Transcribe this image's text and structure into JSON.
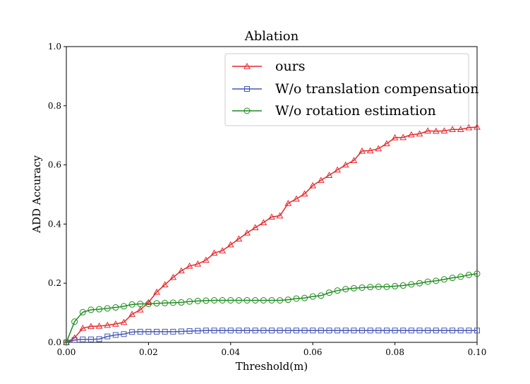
{
  "chart_data": {
    "type": "line",
    "title": "Ablation",
    "xlabel": "Threshold(m)",
    "ylabel": "ADD  Accuracy",
    "xlim": [
      0.0,
      0.1
    ],
    "ylim": [
      0.0,
      1.0
    ],
    "xticks": [
      "0.00",
      "0.02",
      "0.04",
      "0.06",
      "0.08",
      "0.10"
    ],
    "yticks": [
      "0.0",
      "0.2",
      "0.4",
      "0.6",
      "0.8",
      "1.0"
    ],
    "grid": false,
    "legend_position": "top-right",
    "x": [
      0.0,
      0.002,
      0.004,
      0.006,
      0.008,
      0.01,
      0.012,
      0.014,
      0.016,
      0.018,
      0.02,
      0.022,
      0.024,
      0.026,
      0.028,
      0.03,
      0.032,
      0.034,
      0.036,
      0.038,
      0.04,
      0.042,
      0.044,
      0.046,
      0.048,
      0.05,
      0.052,
      0.054,
      0.056,
      0.058,
      0.06,
      0.062,
      0.064,
      0.066,
      0.068,
      0.07,
      0.072,
      0.074,
      0.076,
      0.078,
      0.08,
      0.082,
      0.084,
      0.086,
      0.088,
      0.09,
      0.092,
      0.094,
      0.096,
      0.098,
      0.1
    ],
    "series": [
      {
        "name": "ours",
        "color": "#e8262a",
        "marker": "triangle",
        "values": [
          0.0,
          0.015,
          0.048,
          0.054,
          0.055,
          0.058,
          0.062,
          0.068,
          0.095,
          0.11,
          0.135,
          0.17,
          0.195,
          0.22,
          0.242,
          0.258,
          0.265,
          0.278,
          0.302,
          0.31,
          0.33,
          0.35,
          0.37,
          0.388,
          0.405,
          0.424,
          0.428,
          0.47,
          0.485,
          0.502,
          0.53,
          0.548,
          0.565,
          0.583,
          0.6,
          0.615,
          0.647,
          0.648,
          0.655,
          0.672,
          0.692,
          0.693,
          0.702,
          0.705,
          0.715,
          0.714,
          0.715,
          0.72,
          0.72,
          0.726,
          0.728
        ]
      },
      {
        "name": "W/o translation compensation",
        "color": "#4457b5",
        "marker": "square",
        "values": [
          0.0,
          0.008,
          0.01,
          0.01,
          0.011,
          0.02,
          0.025,
          0.028,
          0.035,
          0.036,
          0.036,
          0.036,
          0.036,
          0.036,
          0.037,
          0.038,
          0.039,
          0.04,
          0.04,
          0.04,
          0.04,
          0.04,
          0.04,
          0.04,
          0.04,
          0.04,
          0.04,
          0.04,
          0.04,
          0.04,
          0.04,
          0.04,
          0.04,
          0.04,
          0.04,
          0.04,
          0.04,
          0.04,
          0.04,
          0.04,
          0.04,
          0.04,
          0.04,
          0.04,
          0.04,
          0.04,
          0.04,
          0.04,
          0.04,
          0.04,
          0.04
        ]
      },
      {
        "name": "W/o rotation estimation",
        "color": "#1e8c1e",
        "marker": "circle",
        "values": [
          0.0,
          0.07,
          0.102,
          0.11,
          0.112,
          0.115,
          0.118,
          0.122,
          0.128,
          0.13,
          0.13,
          0.132,
          0.133,
          0.134,
          0.135,
          0.138,
          0.14,
          0.141,
          0.142,
          0.142,
          0.142,
          0.142,
          0.142,
          0.142,
          0.142,
          0.142,
          0.142,
          0.144,
          0.148,
          0.15,
          0.155,
          0.158,
          0.168,
          0.175,
          0.18,
          0.183,
          0.185,
          0.187,
          0.188,
          0.188,
          0.19,
          0.192,
          0.196,
          0.2,
          0.205,
          0.208,
          0.213,
          0.218,
          0.222,
          0.228,
          0.232
        ]
      }
    ]
  }
}
